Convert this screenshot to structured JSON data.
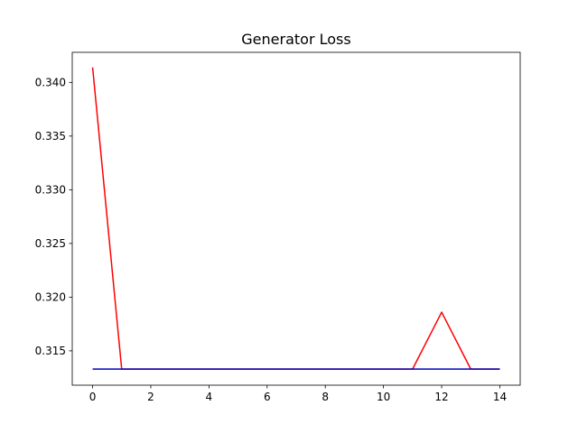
{
  "chart_data": {
    "type": "line",
    "title": "Generator Loss",
    "xlabel": "",
    "ylabel": "",
    "xlim": [
      -0.7,
      14.7
    ],
    "ylim": [
      0.3118,
      0.3428
    ],
    "xticks": [
      0,
      2,
      4,
      6,
      8,
      10,
      12,
      14
    ],
    "xtick_labels": [
      "0",
      "2",
      "4",
      "6",
      "8",
      "10",
      "12",
      "14"
    ],
    "yticks": [
      0.315,
      0.32,
      0.325,
      0.33,
      0.335,
      0.34
    ],
    "ytick_labels": [
      "0.315",
      "0.320",
      "0.325",
      "0.330",
      "0.335",
      "0.340"
    ],
    "grid": false,
    "x": [
      0,
      1,
      2,
      3,
      4,
      5,
      6,
      7,
      8,
      9,
      10,
      11,
      12,
      13,
      14
    ],
    "series": [
      {
        "color": "#ff0000",
        "values": [
          0.3414,
          0.3133,
          0.3133,
          0.3133,
          0.3133,
          0.3133,
          0.3133,
          0.3133,
          0.3133,
          0.3133,
          0.3133,
          0.3133,
          0.3186,
          0.3133,
          0.3133
        ]
      },
      {
        "color": "#0000bf",
        "values": [
          0.3133,
          0.3133,
          0.3133,
          0.3133,
          0.3133,
          0.3133,
          0.3133,
          0.3133,
          0.3133,
          0.3133,
          0.3133,
          0.3133,
          0.3133,
          0.3133,
          0.3133
        ]
      }
    ]
  }
}
